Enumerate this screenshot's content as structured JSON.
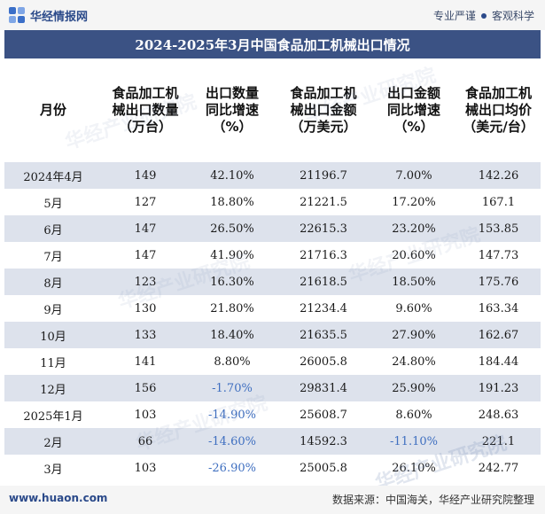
{
  "header": {
    "brand": "华经情报网",
    "slogan_left": "专业严谨",
    "slogan_right": "客观科学"
  },
  "title": "2024-2025年3月中国食品加工机械出口情况",
  "table": {
    "columns": [
      [
        "月份"
      ],
      [
        "食品加工机",
        "械出口数量",
        "（万台）"
      ],
      [
        "出口数量",
        "同比增速",
        "（%）"
      ],
      [
        "食品加工机",
        "械出口金额",
        "（万美元）"
      ],
      [
        "出口金额",
        "同比增速",
        "（%）"
      ],
      [
        "食品加工机",
        "械出口均价",
        "（美元/台）"
      ]
    ],
    "rows": [
      [
        "2024年4月",
        "149",
        "42.10%",
        "21196.7",
        "7.00%",
        "142.26"
      ],
      [
        "5月",
        "127",
        "18.80%",
        "21221.5",
        "17.20%",
        "167.1"
      ],
      [
        "6月",
        "147",
        "26.50%",
        "22615.3",
        "23.20%",
        "153.85"
      ],
      [
        "7月",
        "147",
        "41.90%",
        "21716.3",
        "20.60%",
        "147.73"
      ],
      [
        "8月",
        "123",
        "16.30%",
        "21618.5",
        "18.50%",
        "175.76"
      ],
      [
        "9月",
        "130",
        "21.80%",
        "21234.4",
        "9.60%",
        "163.34"
      ],
      [
        "10月",
        "133",
        "18.40%",
        "21635.5",
        "27.90%",
        "162.67"
      ],
      [
        "11月",
        "141",
        "8.80%",
        "26005.8",
        "24.80%",
        "184.44"
      ],
      [
        "12月",
        "156",
        "-1.70%",
        "29831.4",
        "25.90%",
        "191.23"
      ],
      [
        "2025年1月",
        "103",
        "-14.90%",
        "25608.7",
        "8.60%",
        "248.63"
      ],
      [
        "2月",
        "66",
        "-14.60%",
        "14592.3",
        "-11.10%",
        "221.1"
      ],
      [
        "3月",
        "103",
        "-26.90%",
        "25005.8",
        "26.10%",
        "242.77"
      ]
    ]
  },
  "watermark": "华经产业研究院",
  "footer": {
    "url": "www.huaon.com",
    "source": "数据来源：中国海关，华经产业研究院整理"
  },
  "colors": {
    "title_bg": "#3b5284",
    "row_shade": "#dde2ec",
    "negative": "#3f6fc0"
  }
}
